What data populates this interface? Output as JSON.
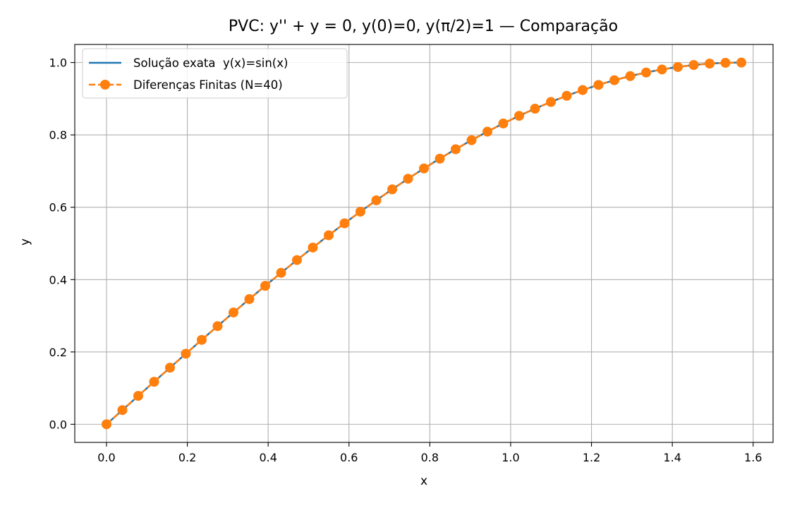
{
  "chart_data": {
    "type": "line",
    "title": "PVC: y'' + y = 0,  y(0)=0,  y(π/2)=1 — Comparação",
    "xlabel": "x",
    "ylabel": "y",
    "xlim": [
      -0.0785,
      1.6493
    ],
    "ylim": [
      -0.05,
      1.05
    ],
    "xticks": [
      0.0,
      0.2,
      0.4,
      0.6,
      0.8,
      1.0,
      1.2,
      1.4,
      1.6
    ],
    "xtick_labels": [
      "0.0",
      "0.2",
      "0.4",
      "0.6",
      "0.8",
      "1.0",
      "1.2",
      "1.4",
      "1.6"
    ],
    "yticks": [
      0.0,
      0.2,
      0.4,
      0.6,
      0.8,
      1.0
    ],
    "ytick_labels": [
      "0.0",
      "0.2",
      "0.4",
      "0.6",
      "0.8",
      "1.0"
    ],
    "grid": true,
    "legend_position": "upper-left",
    "series": [
      {
        "name": "Solução exata  y(x)=sin(x)",
        "style": "solid line",
        "color": "#1f77b4",
        "function": "sin(x)",
        "domain": [
          0,
          1.5708
        ]
      },
      {
        "name": "Diferenças Finitas (N=40)",
        "style": "dashed line with circle markers",
        "color": "#ff7f0e",
        "x": [
          0.0,
          0.0393,
          0.0785,
          0.1178,
          0.1571,
          0.1963,
          0.2356,
          0.2749,
          0.3142,
          0.3534,
          0.3927,
          0.432,
          0.4712,
          0.5105,
          0.5498,
          0.589,
          0.6283,
          0.6676,
          0.7069,
          0.7461,
          0.7854,
          0.8247,
          0.8639,
          0.9032,
          0.9425,
          0.9817,
          1.021,
          1.0603,
          1.0996,
          1.1388,
          1.1781,
          1.2174,
          1.2566,
          1.2959,
          1.3352,
          1.3744,
          1.4137,
          1.453,
          1.4923,
          1.5315,
          1.5708
        ],
        "y": [
          0.0,
          0.0393,
          0.0785,
          0.1175,
          0.1564,
          0.1951,
          0.2334,
          0.2714,
          0.309,
          0.3461,
          0.3827,
          0.4187,
          0.454,
          0.4886,
          0.5225,
          0.5556,
          0.5878,
          0.6191,
          0.6494,
          0.6788,
          0.7071,
          0.7343,
          0.7604,
          0.7853,
          0.809,
          0.8315,
          0.8526,
          0.8725,
          0.891,
          0.908,
          0.9239,
          0.9382,
          0.9511,
          0.9625,
          0.9724,
          0.9808,
          0.9877,
          0.9932,
          0.997,
          0.9992,
          1.0
        ]
      }
    ]
  },
  "colors": {
    "exact": "#1f77b4",
    "fd": "#ff7f0e",
    "grid": "#b0b0b0"
  }
}
